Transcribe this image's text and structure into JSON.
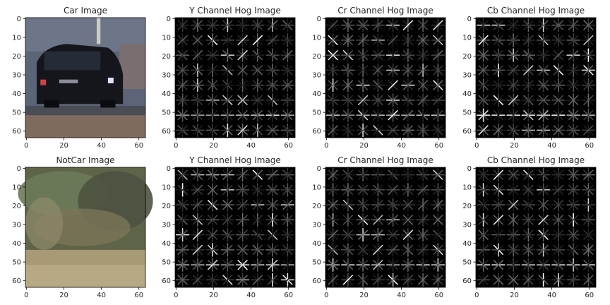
{
  "figure": {
    "background": "#ffffff",
    "axis_color": "#000000",
    "text_color": "#262626"
  },
  "chart_data": [
    {
      "type": "image",
      "title": "Car Image",
      "row": 0,
      "col": 0,
      "content": "car-photo",
      "xticks": [
        0,
        20,
        40,
        60
      ],
      "yticks": [
        0,
        10,
        20,
        30,
        40,
        50,
        60
      ],
      "xlim": [
        -0.5,
        63.5
      ],
      "ylim": [
        63.5,
        -0.5
      ],
      "seed": 11
    },
    {
      "type": "image",
      "title": "Y Channel Hog Image",
      "row": 0,
      "col": 1,
      "content": "hog",
      "xticks": [
        0,
        20,
        40,
        60
      ],
      "yticks": [
        0,
        10,
        20,
        30,
        40,
        50,
        60
      ],
      "xlim": [
        -0.5,
        63.5
      ],
      "ylim": [
        63.5,
        -0.5
      ],
      "seed": 21
    },
    {
      "type": "image",
      "title": "Cr Channel Hog Image",
      "row": 0,
      "col": 2,
      "content": "hog",
      "xticks": [
        0,
        20,
        40,
        60
      ],
      "yticks": [
        0,
        10,
        20,
        30,
        40,
        50,
        60
      ],
      "xlim": [
        -0.5,
        63.5
      ],
      "ylim": [
        63.5,
        -0.5
      ],
      "seed": 31
    },
    {
      "type": "image",
      "title": "Cb Channel Hog Image",
      "row": 0,
      "col": 3,
      "content": "hog",
      "xticks": [
        0,
        20,
        40,
        60
      ],
      "yticks": [
        0,
        10,
        20,
        30,
        40,
        50,
        60
      ],
      "xlim": [
        -0.5,
        63.5
      ],
      "ylim": [
        63.5,
        -0.5
      ],
      "seed": 41
    },
    {
      "type": "image",
      "title": "NotCar Image",
      "row": 1,
      "col": 0,
      "content": "notcar-photo",
      "xticks": [
        0,
        20,
        40,
        60
      ],
      "yticks": [
        0,
        10,
        20,
        30,
        40,
        50,
        60
      ],
      "xlim": [
        -0.5,
        63.5
      ],
      "ylim": [
        63.5,
        -0.5
      ],
      "seed": 51
    },
    {
      "type": "image",
      "title": "Y Channel Hog Image",
      "row": 1,
      "col": 1,
      "content": "hog",
      "xticks": [
        0,
        20,
        40,
        60
      ],
      "yticks": [
        0,
        10,
        20,
        30,
        40,
        50,
        60
      ],
      "xlim": [
        -0.5,
        63.5
      ],
      "ylim": [
        63.5,
        -0.5
      ],
      "seed": 61
    },
    {
      "type": "image",
      "title": "Cr Channel Hog Image",
      "row": 1,
      "col": 2,
      "content": "hog",
      "xticks": [
        0,
        20,
        40,
        60
      ],
      "yticks": [
        0,
        10,
        20,
        30,
        40,
        50,
        60
      ],
      "xlim": [
        -0.5,
        63.5
      ],
      "ylim": [
        63.5,
        -0.5
      ],
      "seed": 71
    },
    {
      "type": "image",
      "title": "Cb Channel Hog Image",
      "row": 1,
      "col": 3,
      "content": "hog",
      "xticks": [
        0,
        20,
        40,
        60
      ],
      "yticks": [
        0,
        10,
        20,
        30,
        40,
        50,
        60
      ],
      "xlim": [
        -0.5,
        63.5
      ],
      "ylim": [
        63.5,
        -0.5
      ],
      "seed": 81
    }
  ]
}
